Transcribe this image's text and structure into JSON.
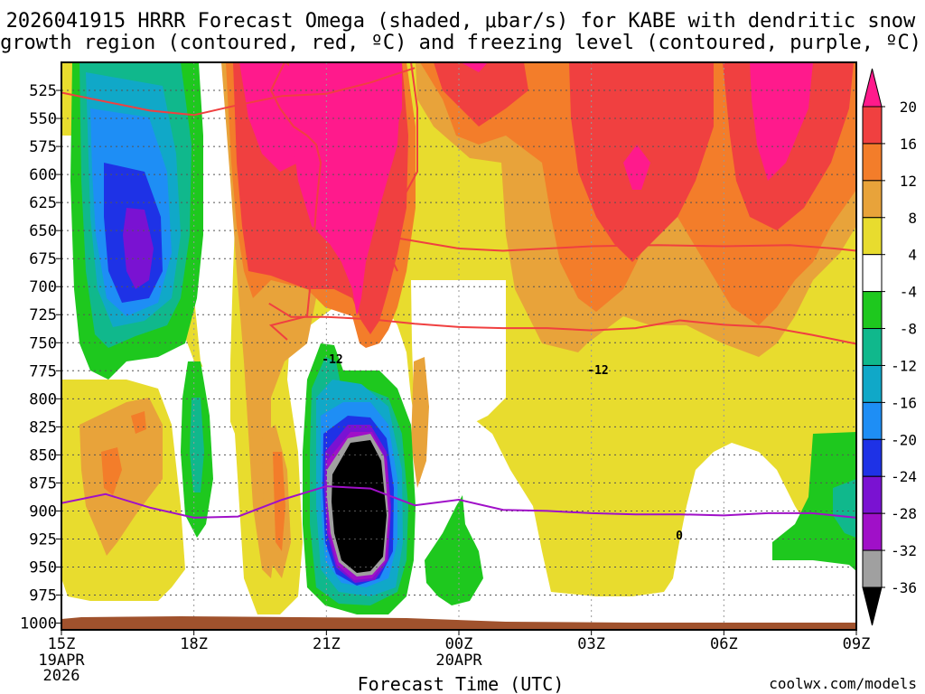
{
  "chart_data": {
    "type": "heatmap",
    "title_line1": "2026041915 HRRR Forecast Omega (shaded, μbar/s) for KABE with dendritic snow",
    "title_line2": "growth region (contoured, red, ºC) and freezing level (contoured, purple, ºC)",
    "xlabel": "Forecast Time (UTC)",
    "watermark": "coolwx.com/models",
    "x_ticks": [
      {
        "hours": 0,
        "label": "15Z",
        "sub1": "19APR",
        "sub2": "2026"
      },
      {
        "hours": 3,
        "label": "18Z",
        "sub1": "",
        "sub2": ""
      },
      {
        "hours": 6,
        "label": "21Z",
        "sub1": "",
        "sub2": ""
      },
      {
        "hours": 9,
        "label": "00Z",
        "sub1": "20APR",
        "sub2": ""
      },
      {
        "hours": 12,
        "label": "03Z",
        "sub1": "",
        "sub2": ""
      },
      {
        "hours": 15,
        "label": "06Z",
        "sub1": "",
        "sub2": ""
      },
      {
        "hours": 18,
        "label": "09Z",
        "sub1": "",
        "sub2": ""
      }
    ],
    "x_range_hours": [
      0,
      18
    ],
    "y_ticks_mb": [
      525,
      550,
      575,
      600,
      625,
      650,
      675,
      700,
      725,
      750,
      775,
      800,
      825,
      850,
      875,
      900,
      925,
      950,
      975,
      1000
    ],
    "y_range_mb": [
      500,
      1006
    ],
    "colorbar": {
      "levels": [
        20,
        16,
        12,
        8,
        4,
        -4,
        -8,
        -12,
        -16,
        -20,
        -24,
        -28,
        -32,
        -36
      ],
      "colors": [
        "#ff1a8c",
        "#f04040",
        "#f37d2a",
        "#e8a33a",
        "#e8dc2e",
        "#ffffff",
        "#1ec81e",
        "#10b88c",
        "#10a8c8",
        "#1e8ef5",
        "#1e32e6",
        "#7a12d2",
        "#a010c8",
        "#a0a0a0",
        "#000000"
      ]
    },
    "contours": {
      "dgz_label": "-12",
      "freezing_label": "0",
      "dgz_top_mb": [
        [
          0,
          527
        ],
        [
          2,
          543
        ],
        [
          3,
          547
        ],
        [
          4,
          538
        ],
        [
          5,
          530
        ],
        [
          6,
          528
        ],
        [
          7,
          518
        ],
        [
          8,
          505
        ]
      ],
      "dgz_bottom_mb": [
        [
          4.7,
          715
        ],
        [
          5.2,
          727
        ],
        [
          6,
          727
        ],
        [
          7,
          729
        ],
        [
          8,
          733
        ],
        [
          9,
          736
        ],
        [
          10,
          737
        ],
        [
          11,
          737
        ],
        [
          12,
          739
        ],
        [
          13,
          737
        ],
        [
          14,
          730
        ],
        [
          15,
          734
        ],
        [
          16,
          736
        ],
        [
          17,
          743
        ],
        [
          18,
          751
        ]
      ],
      "dgz_mid_mb": [
        [
          7.5,
          656
        ],
        [
          9,
          666
        ],
        [
          10,
          668
        ],
        [
          12,
          664
        ],
        [
          13.5,
          663
        ],
        [
          15,
          664
        ],
        [
          16.5,
          663
        ],
        [
          17.5,
          666
        ],
        [
          18,
          668
        ]
      ],
      "freezing_mb": [
        [
          0,
          893
        ],
        [
          1,
          885
        ],
        [
          2,
          897
        ],
        [
          3,
          906
        ],
        [
          4,
          905
        ],
        [
          5,
          890
        ],
        [
          6,
          878
        ],
        [
          7,
          880
        ],
        [
          8,
          895
        ],
        [
          9,
          890
        ],
        [
          10,
          899
        ],
        [
          11,
          900
        ],
        [
          12,
          902
        ],
        [
          13,
          903
        ],
        [
          14,
          903
        ],
        [
          15,
          904
        ],
        [
          16,
          902
        ],
        [
          17,
          902
        ],
        [
          18,
          906
        ]
      ]
    },
    "omega_regions": [
      {
        "name": "upper-rising-broad",
        "value": 6,
        "center_hours": 12.5,
        "center_mb": 620
      },
      {
        "name": "upper-rising-max",
        "value": 22,
        "center_hours": 5.8,
        "center_mb": 560
      },
      {
        "name": "west-sinking-column",
        "value": -30,
        "center_hours": 1.5,
        "center_mb": 630
      },
      {
        "name": "strong-sinking-core",
        "value": -38,
        "center_hours": 7.0,
        "center_mb": 870
      },
      {
        "name": "southwest-sinking",
        "value": -10,
        "center_hours": 9.0,
        "center_mb": 930
      },
      {
        "name": "southeast-sinking",
        "value": -10,
        "center_hours": 17.5,
        "center_mb": 870
      }
    ],
    "terrain_surface_mb": 1000
  }
}
